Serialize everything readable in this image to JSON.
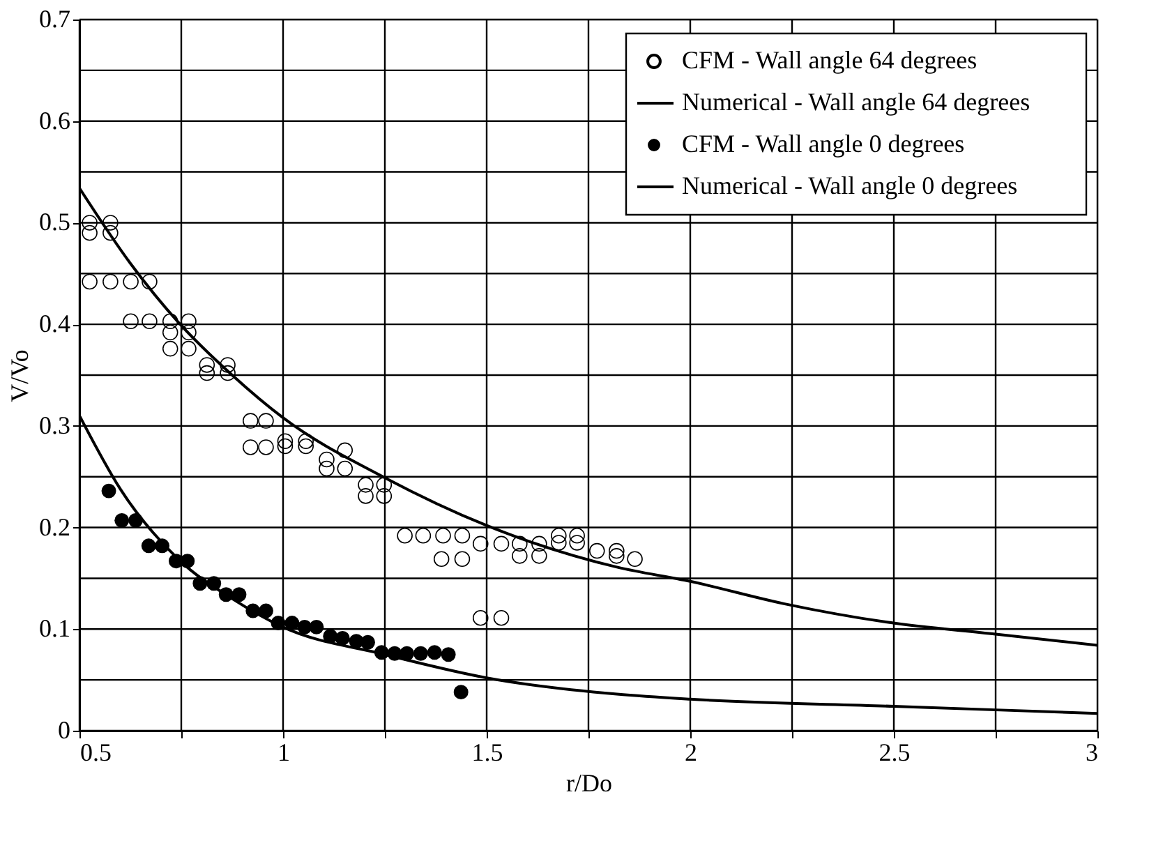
{
  "chart_data": {
    "type": "scatter",
    "xlabel": "r/Do",
    "ylabel": "V/Vo",
    "xlim": [
      0.5,
      3
    ],
    "ylim": [
      0,
      0.7
    ],
    "xticks": [
      0.5,
      {
        "value": 0.75,
        "label": null
      },
      1,
      {
        "value": 1.25,
        "label": null
      },
      1.5,
      {
        "value": 1.75,
        "label": null
      },
      2,
      {
        "value": 2.25,
        "label": null
      },
      2.5,
      {
        "value": 2.75,
        "label": null
      },
      3
    ],
    "yticks": [
      0,
      {
        "value": 0.05,
        "label": null
      },
      0.1,
      {
        "value": 0.15,
        "label": null
      },
      0.2,
      {
        "value": 0.25,
        "label": null
      },
      0.3,
      {
        "value": 0.35,
        "label": null
      },
      0.4,
      {
        "value": 0.45,
        "label": null
      },
      0.5,
      {
        "value": 0.55,
        "label": null
      },
      0.6,
      {
        "value": 0.65,
        "label": null
      },
      0.7
    ],
    "grid": true,
    "legend": "top right",
    "series": [
      {
        "name": "CFM - Wall angle 64 degrees",
        "marker": "circle",
        "color": "#000000",
        "x": [
          0.525,
          0.576,
          0.525,
          0.576,
          0.525,
          0.576,
          0.626,
          0.672,
          0.626,
          0.672,
          0.723,
          0.768,
          0.723,
          0.768,
          0.723,
          0.768,
          0.813,
          0.864,
          0.813,
          0.864,
          0.92,
          0.958,
          0.92,
          0.958,
          1.005,
          1.056,
          1.005,
          1.056,
          1.107,
          1.152,
          1.107,
          1.152,
          1.203,
          1.248,
          1.203,
          1.248,
          1.299,
          1.344,
          1.393,
          1.44,
          1.485,
          1.536,
          1.581,
          1.629,
          1.677,
          1.722,
          1.677,
          1.722,
          1.771,
          1.819,
          1.819,
          1.864,
          1.389,
          1.44,
          1.581,
          1.629,
          1.485,
          1.536
        ],
        "values": [
          0.5,
          0.5,
          0.49,
          0.49,
          0.442,
          0.442,
          0.442,
          0.442,
          0.403,
          0.403,
          0.403,
          0.403,
          0.392,
          0.392,
          0.376,
          0.376,
          0.36,
          0.36,
          0.352,
          0.352,
          0.305,
          0.305,
          0.279,
          0.279,
          0.285,
          0.285,
          0.28,
          0.28,
          0.267,
          0.276,
          0.258,
          0.258,
          0.242,
          0.242,
          0.231,
          0.231,
          0.192,
          0.192,
          0.192,
          0.192,
          0.184,
          0.184,
          0.184,
          0.184,
          0.192,
          0.192,
          0.185,
          0.185,
          0.177,
          0.177,
          0.172,
          0.169,
          0.169,
          0.169,
          0.172,
          0.172,
          0.111,
          0.111
        ]
      },
      {
        "name": "Numerical - Wall angle 64 degrees",
        "type": "line",
        "line_style": "solid",
        "color": "#000000",
        "x": [
          0.5,
          0.625,
          0.745,
          0.875,
          1,
          1.25,
          1.5,
          1.82,
          2,
          2.23,
          2.48,
          2.75,
          3
        ],
        "values": [
          0.534,
          0.46,
          0.401,
          0.35,
          0.308,
          0.249,
          0.202,
          0.161,
          0.147,
          0.125,
          0.107,
          0.095,
          0.084
        ]
      },
      {
        "name": "CFM - Wall angle 0 degrees",
        "marker": "circle",
        "color": "#000000",
        "x": [
          0.572,
          0.604,
          0.638,
          0.67,
          0.703,
          0.737,
          0.765,
          0.796,
          0.83,
          0.86,
          0.892,
          0.926,
          0.958,
          0.988,
          1.022,
          1.053,
          1.082,
          1.116,
          1.146,
          1.18,
          1.208,
          1.242,
          1.274,
          1.304,
          1.338,
          1.372,
          1.406,
          1.437
        ],
        "values": [
          0.236,
          0.207,
          0.207,
          0.182,
          0.182,
          0.167,
          0.167,
          0.145,
          0.145,
          0.134,
          0.134,
          0.118,
          0.118,
          0.106,
          0.106,
          0.102,
          0.102,
          0.093,
          0.091,
          0.088,
          0.087,
          0.077,
          0.076,
          0.076,
          0.076,
          0.077,
          0.075,
          0.038
        ]
      },
      {
        "name": "Numerical - Wall angle 0 degrees",
        "type": "line",
        "line_style": "solid",
        "color": "#000000",
        "x": [
          0.5,
          0.6,
          0.745,
          0.875,
          1,
          1.25,
          1.5,
          1.82,
          2,
          2.5,
          3
        ],
        "values": [
          0.31,
          0.238,
          0.168,
          0.13,
          0.102,
          0.075,
          0.052,
          0.036,
          0.031,
          0.024,
          0.017
        ]
      }
    ]
  }
}
